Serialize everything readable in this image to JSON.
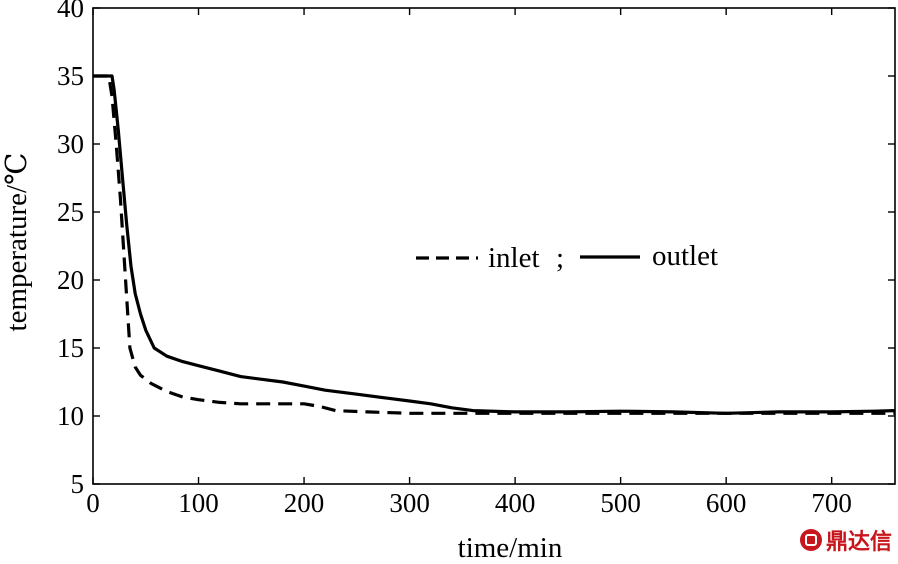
{
  "chart_data": {
    "type": "line",
    "xlabel": "time/min",
    "ylabel": "temperature/℃",
    "xlim": [
      0,
      760
    ],
    "ylim": [
      5,
      40
    ],
    "xticks": [
      "0",
      "100",
      "200",
      "300",
      "400",
      "500",
      "600",
      "700"
    ],
    "yticks": [
      "5",
      "10",
      "15",
      "20",
      "25",
      "30",
      "35",
      "40"
    ],
    "legend_location": "center-right",
    "legend_separator": ";",
    "series": [
      {
        "name": "inlet",
        "style": "dashed",
        "color": "#000000",
        "x": [
          0,
          10,
          15,
          18,
          22,
          26,
          30,
          35,
          40,
          45,
          55,
          70,
          85,
          100,
          120,
          140,
          160,
          180,
          200,
          215,
          230,
          260,
          300,
          350,
          400,
          450,
          500,
          550,
          600,
          650,
          700,
          760
        ],
        "y": [
          35.0,
          35.0,
          35.0,
          33.5,
          30.0,
          26.0,
          21.0,
          15.0,
          13.6,
          13.0,
          12.4,
          11.8,
          11.4,
          11.2,
          11.0,
          10.9,
          10.9,
          10.9,
          10.9,
          10.7,
          10.4,
          10.3,
          10.2,
          10.2,
          10.2,
          10.2,
          10.2,
          10.2,
          10.2,
          10.2,
          10.2,
          10.2
        ]
      },
      {
        "name": "outlet",
        "style": "solid",
        "color": "#000000",
        "x": [
          0,
          10,
          15,
          18,
          20,
          24,
          28,
          32,
          36,
          40,
          45,
          50,
          58,
          70,
          85,
          100,
          120,
          140,
          160,
          180,
          200,
          220,
          250,
          280,
          300,
          320,
          340,
          360,
          400,
          450,
          500,
          550,
          600,
          650,
          700,
          740,
          760
        ],
        "y": [
          35.0,
          35.0,
          35.0,
          35.0,
          34.0,
          31.0,
          27.5,
          24.0,
          21.0,
          19.0,
          17.5,
          16.3,
          15.0,
          14.4,
          14.0,
          13.7,
          13.3,
          12.9,
          12.7,
          12.5,
          12.2,
          11.9,
          11.6,
          11.3,
          11.1,
          10.9,
          10.6,
          10.4,
          10.3,
          10.3,
          10.35,
          10.3,
          10.2,
          10.3,
          10.3,
          10.35,
          10.4
        ]
      }
    ]
  },
  "watermark": {
    "text": "鼎达信",
    "color": "#c8161d"
  }
}
